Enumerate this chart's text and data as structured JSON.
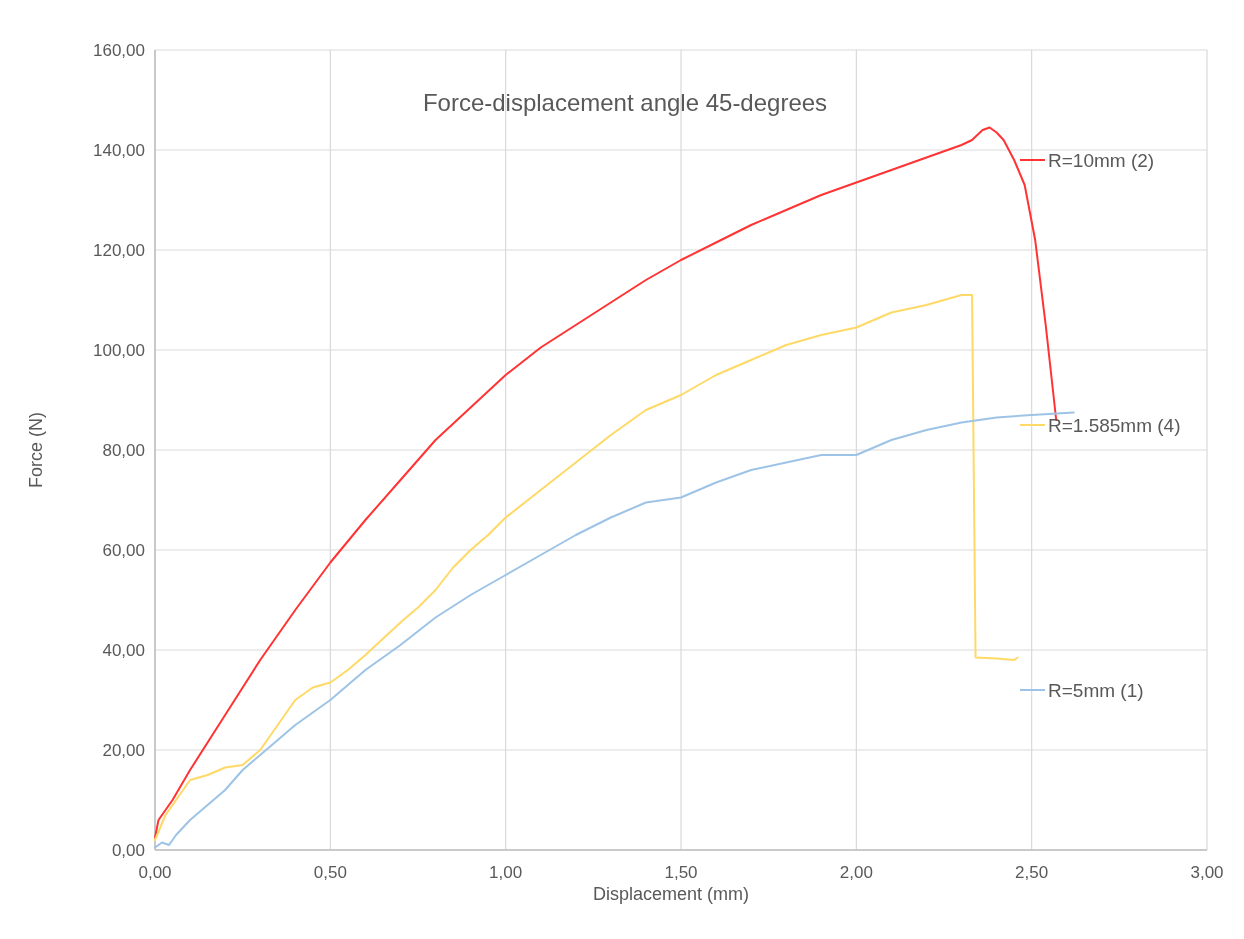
{
  "chart_data": {
    "type": "line",
    "title": "Force-displacement angle 45-degrees",
    "xlabel": "Displacement (mm)",
    "ylabel": "Force (N)",
    "xlim": [
      0,
      3
    ],
    "ylim": [
      0,
      160
    ],
    "xticks": [
      {
        "value": 0,
        "label": "0,00"
      },
      {
        "value": 0.5,
        "label": "0,50"
      },
      {
        "value": 1,
        "label": "1,00"
      },
      {
        "value": 1.5,
        "label": "1,50"
      },
      {
        "value": 2,
        "label": "2,00"
      },
      {
        "value": 2.5,
        "label": "2,50"
      },
      {
        "value": 3,
        "label": "3,00"
      }
    ],
    "yticks": [
      {
        "value": 0,
        "label": "0,00"
      },
      {
        "value": 20,
        "label": "20,00"
      },
      {
        "value": 40,
        "label": "40,00"
      },
      {
        "value": 60,
        "label": "60,00"
      },
      {
        "value": 80,
        "label": "80,00"
      },
      {
        "value": 100,
        "label": "100,00"
      },
      {
        "value": 120,
        "label": "120,00"
      },
      {
        "value": 140,
        "label": "140,00"
      },
      {
        "value": 160,
        "label": "160,00"
      }
    ],
    "grid": true,
    "legend": "right",
    "marker": "none",
    "line_style": "solid",
    "series": [
      {
        "name": "R=10mm (2)",
        "color": "#ff3333",
        "x": [
          0,
          0.01,
          0.05,
          0.1,
          0.2,
          0.3,
          0.4,
          0.5,
          0.6,
          0.7,
          0.8,
          0.9,
          1.0,
          1.1,
          1.2,
          1.3,
          1.4,
          1.5,
          1.6,
          1.7,
          1.8,
          1.9,
          2.0,
          2.1,
          2.2,
          2.3,
          2.33,
          2.36,
          2.38,
          2.4,
          2.42,
          2.45,
          2.48,
          2.51,
          2.54,
          2.57
        ],
        "values": [
          2.5,
          6,
          10,
          16,
          27,
          38,
          48,
          57.5,
          66,
          74,
          82,
          88.5,
          95,
          100.5,
          105,
          109.5,
          114,
          118,
          121.5,
          125,
          128,
          131,
          133.5,
          136,
          138.5,
          141,
          142,
          144,
          144.5,
          143.5,
          142,
          138,
          133,
          122,
          105,
          86
        ]
      },
      {
        "name": "R=1.585mm (4)",
        "color": "#ffd966",
        "x": [
          0,
          0.03,
          0.07,
          0.1,
          0.15,
          0.2,
          0.25,
          0.3,
          0.35,
          0.4,
          0.45,
          0.5,
          0.55,
          0.6,
          0.7,
          0.75,
          0.8,
          0.85,
          0.9,
          0.95,
          1.0,
          1.1,
          1.2,
          1.3,
          1.4,
          1.5,
          1.6,
          1.7,
          1.8,
          1.9,
          2.0,
          2.1,
          2.2,
          2.3,
          2.33,
          2.34,
          2.4,
          2.45,
          2.46
        ],
        "values": [
          2,
          7,
          11,
          14,
          15,
          16.5,
          17,
          20,
          25,
          30,
          32.5,
          33.5,
          36,
          39,
          45.5,
          48.5,
          52,
          56.5,
          60,
          63,
          66.5,
          72,
          77.5,
          83,
          88,
          91,
          95,
          98,
          101,
          103,
          104.5,
          107.5,
          109,
          111,
          111,
          38.5,
          38.3,
          38,
          38.5
        ]
      },
      {
        "name": "R=5mm (1)",
        "color": "#9dc3e6",
        "x": [
          0,
          0.02,
          0.04,
          0.06,
          0.1,
          0.15,
          0.2,
          0.25,
          0.3,
          0.4,
          0.5,
          0.6,
          0.7,
          0.8,
          0.9,
          1.0,
          1.1,
          1.2,
          1.3,
          1.4,
          1.5,
          1.6,
          1.7,
          1.8,
          1.9,
          2.0,
          2.1,
          2.2,
          2.3,
          2.4,
          2.5,
          2.62
        ],
        "values": [
          0.5,
          1.5,
          1,
          3,
          6,
          9,
          12,
          16,
          19,
          25,
          30,
          36,
          41,
          46.5,
          51,
          55,
          59,
          63,
          66.5,
          69.5,
          70.5,
          73.5,
          76,
          77.5,
          79,
          79,
          82,
          84,
          85.5,
          86.5,
          87,
          87.5
        ]
      }
    ]
  }
}
